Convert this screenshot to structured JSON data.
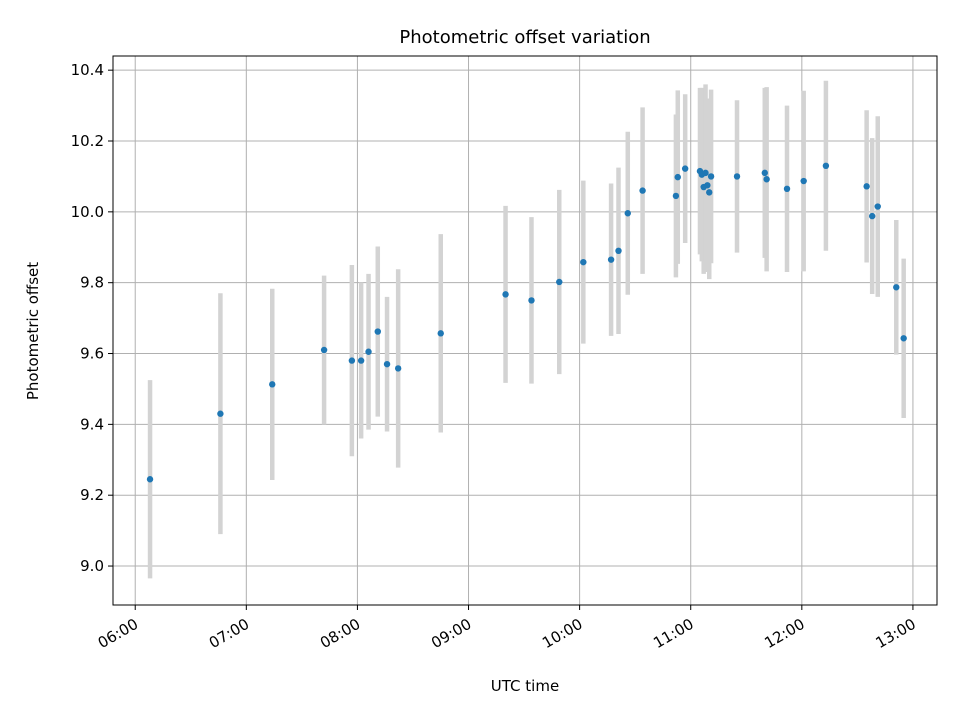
{
  "chart_data": {
    "type": "scatter",
    "title": "Photometric offset variation",
    "xlabel": "UTC time",
    "ylabel": "Photometric offset",
    "x_ticks": [
      "06:00",
      "07:00",
      "08:00",
      "09:00",
      "10:00",
      "11:00",
      "12:00",
      "13:00"
    ],
    "y_ticks": [
      "9.0",
      "9.2",
      "9.4",
      "9.6",
      "9.8",
      "10.0",
      "10.2",
      "10.4"
    ],
    "xlim": [
      "05:48",
      "13:13"
    ],
    "ylim": [
      8.89,
      10.44
    ],
    "grid": true,
    "marker_color": "#1f77b4",
    "errorbar_color": "#d3d3d3",
    "points": [
      {
        "t": "06:08",
        "y": 9.245,
        "err": 0.28
      },
      {
        "t": "06:46",
        "y": 9.43,
        "err": 0.34
      },
      {
        "t": "07:14",
        "y": 9.513,
        "err": 0.27
      },
      {
        "t": "07:42",
        "y": 9.61,
        "err": 0.21
      },
      {
        "t": "07:57",
        "y": 9.58,
        "err": 0.27
      },
      {
        "t": "08:02",
        "y": 9.58,
        "err": 0.22
      },
      {
        "t": "08:06",
        "y": 9.605,
        "err": 0.22
      },
      {
        "t": "08:11",
        "y": 9.662,
        "err": 0.24
      },
      {
        "t": "08:16",
        "y": 9.57,
        "err": 0.19
      },
      {
        "t": "08:22",
        "y": 9.558,
        "err": 0.28
      },
      {
        "t": "08:45",
        "y": 9.657,
        "err": 0.28
      },
      {
        "t": "09:20",
        "y": 9.767,
        "err": 0.25
      },
      {
        "t": "09:34",
        "y": 9.75,
        "err": 0.235
      },
      {
        "t": "09:49",
        "y": 9.802,
        "err": 0.26
      },
      {
        "t": "10:02",
        "y": 9.858,
        "err": 0.23
      },
      {
        "t": "10:17",
        "y": 9.865,
        "err": 0.215
      },
      {
        "t": "10:21",
        "y": 9.89,
        "err": 0.235
      },
      {
        "t": "10:26",
        "y": 9.996,
        "err": 0.23
      },
      {
        "t": "10:34",
        "y": 10.06,
        "err": 0.235
      },
      {
        "t": "10:52",
        "y": 10.045,
        "err": 0.23
      },
      {
        "t": "10:53",
        "y": 10.098,
        "err": 0.245
      },
      {
        "t": "10:57",
        "y": 10.122,
        "err": 0.21
      },
      {
        "t": "11:05",
        "y": 10.115,
        "err": 0.235
      },
      {
        "t": "11:06",
        "y": 10.105,
        "err": 0.245
      },
      {
        "t": "11:07",
        "y": 10.07,
        "err": 0.245
      },
      {
        "t": "11:08",
        "y": 10.11,
        "err": 0.25
      },
      {
        "t": "11:09",
        "y": 10.075,
        "err": 0.245
      },
      {
        "t": "11:10",
        "y": 10.055,
        "err": 0.245
      },
      {
        "t": "11:11",
        "y": 10.1,
        "err": 0.245
      },
      {
        "t": "11:25",
        "y": 10.1,
        "err": 0.215
      },
      {
        "t": "11:40",
        "y": 10.11,
        "err": 0.24
      },
      {
        "t": "11:41",
        "y": 10.092,
        "err": 0.26
      },
      {
        "t": "11:52",
        "y": 10.065,
        "err": 0.235
      },
      {
        "t": "12:01",
        "y": 10.087,
        "err": 0.255
      },
      {
        "t": "12:13",
        "y": 10.13,
        "err": 0.24
      },
      {
        "t": "12:35",
        "y": 10.072,
        "err": 0.215
      },
      {
        "t": "12:38",
        "y": 9.988,
        "err": 0.22
      },
      {
        "t": "12:41",
        "y": 10.015,
        "err": 0.255
      },
      {
        "t": "12:51",
        "y": 9.787,
        "err": 0.19
      },
      {
        "t": "12:55",
        "y": 9.643,
        "err": 0.225
      }
    ]
  }
}
